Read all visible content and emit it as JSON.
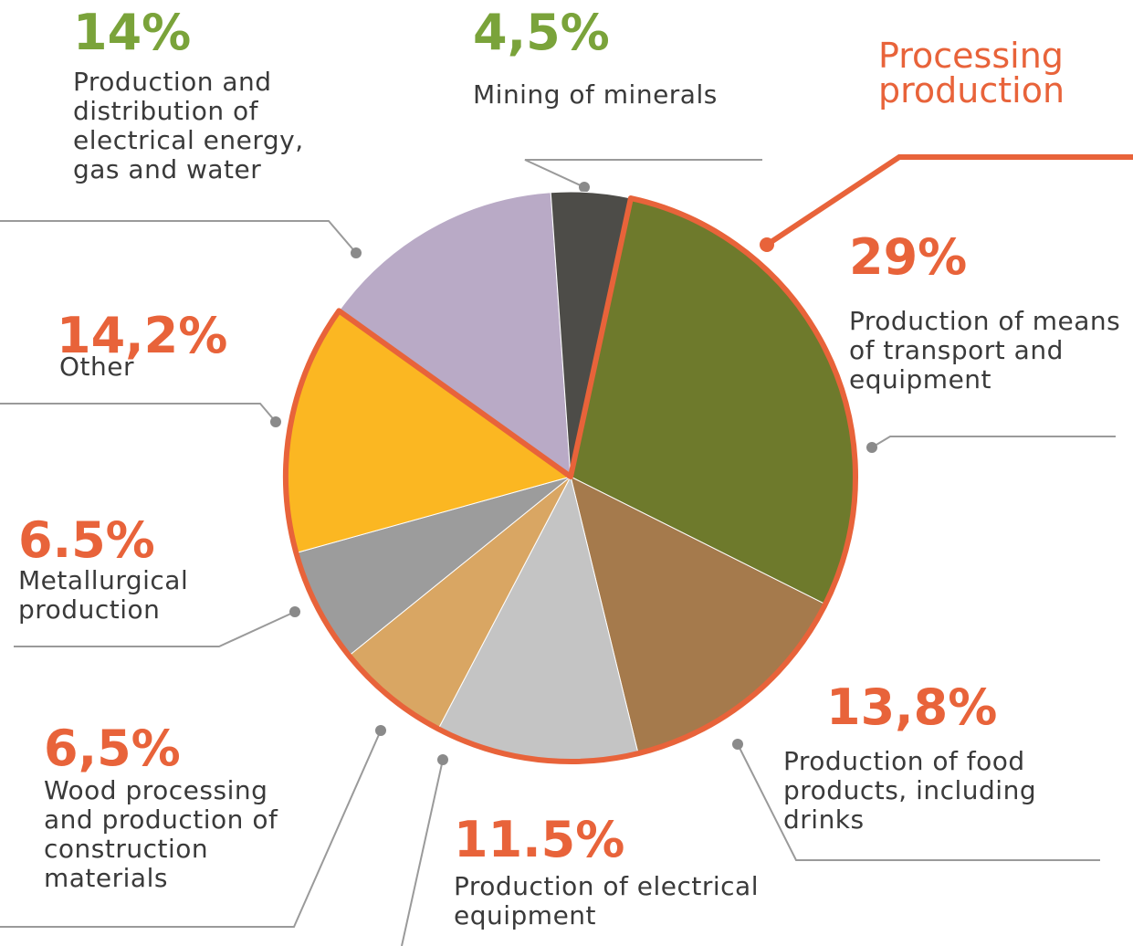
{
  "chart_data": {
    "type": "pie",
    "title": "Processing production",
    "categories": [
      "Production and distribution of electrical energy, gas and water",
      "Mining of minerals",
      "Production of means of transport and equipment",
      "Production of food products, including drinks",
      "Production of electrical equipment",
      "Wood processing and production of construction materials",
      "Metallurgical production",
      "Other"
    ],
    "values": [
      14,
      4.5,
      29,
      13.8,
      11.5,
      6.5,
      6.5,
      14.2
    ],
    "value_labels": [
      "14%",
      "4,5%",
      "29%",
      "13,8%",
      "11.5%",
      "6,5%",
      "6.5%",
      "14,2%"
    ],
    "colors": [
      "#b9aac6",
      "#4d4c48",
      "#6e7a2c",
      "#a57a4c",
      "#c4c4c4",
      "#d9a663",
      "#9c9c9c",
      "#fbb722"
    ],
    "label_colors": [
      "#7aa33a",
      "#7aa33a",
      "#e8633a",
      "#e8633a",
      "#e8633a",
      "#e8633a",
      "#e8633a",
      "#e8633a"
    ],
    "title_color": "#e8633a"
  }
}
